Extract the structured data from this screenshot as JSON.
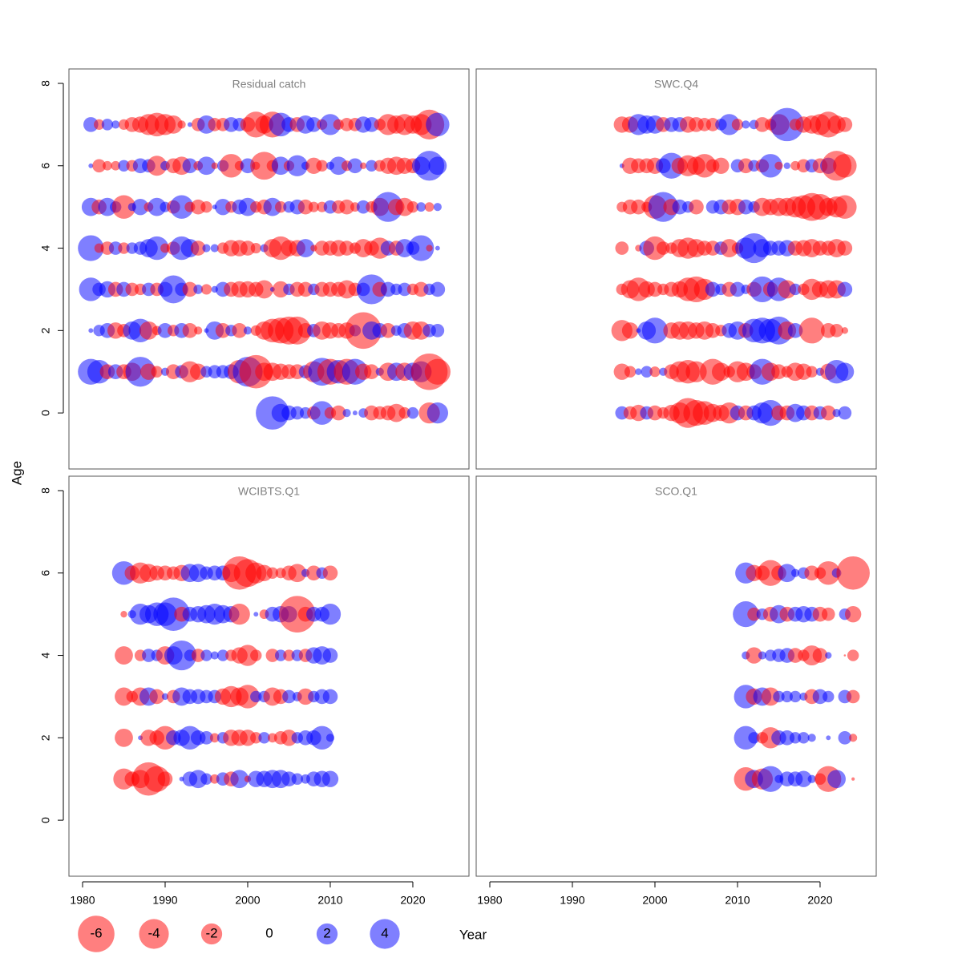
{
  "ylabel": "Age",
  "xlabel": "Year",
  "legend": {
    "values": [
      -6,
      -4,
      -2,
      0,
      2,
      4
    ],
    "positive_color": "#0000ff",
    "negative_color": "#ff0000",
    "opacity": 0.5
  },
  "chart_data": [
    {
      "type": "bubble",
      "title": "Residual catch",
      "xlim": [
        1978.35,
        2026.8
      ],
      "ylim": [
        -1.36,
        8.35
      ],
      "yticks": [
        0,
        2,
        4,
        6,
        8
      ],
      "x": [
        1981,
        1982,
        1983,
        1984,
        1985,
        1986,
        1987,
        1988,
        1989,
        1990,
        1991,
        1992,
        1993,
        1994,
        1995,
        1996,
        1997,
        1998,
        1999,
        2000,
        2001,
        2002,
        2003,
        2004,
        2005,
        2006,
        2007,
        2008,
        2009,
        2010,
        2011,
        2012,
        2013,
        2014,
        2015,
        2016,
        2017,
        2018,
        2019,
        2020,
        2021,
        2022,
        2023
      ],
      "ages": [
        0,
        1,
        2,
        3,
        4,
        5,
        6,
        7
      ],
      "values": [
        [
          null,
          null,
          null,
          null,
          null,
          null,
          null,
          null,
          null,
          null,
          null,
          null,
          null,
          null,
          null,
          null,
          null,
          null,
          null,
          null,
          null,
          null,
          5,
          1.5,
          1,
          0.8,
          0.6,
          -0.8,
          2.5,
          -0.6,
          -1,
          0.3,
          0.1,
          0.4,
          -1,
          -0.8,
          -1,
          -1.5,
          -0.6,
          0.6,
          null,
          -2,
          2
        ],
        [
          3,
          2.5,
          -1,
          1,
          -1,
          -1.5,
          4,
          -1.2,
          -0.6,
          0.3,
          -1,
          0.8,
          -2,
          -1.2,
          0.6,
          0.8,
          0.8,
          1,
          -2.5,
          4,
          -5,
          -1.5,
          -1.5,
          -1.2,
          -1,
          -1,
          0.8,
          -2,
          3.5,
          -3,
          2.5,
          -3,
          3,
          -1.2,
          -1,
          0.3,
          -1.5,
          1.5,
          -1.5,
          1.5,
          2,
          -6,
          -3
        ],
        [
          0.1,
          0.6,
          1,
          -1.2,
          -0.8,
          1.5,
          2.5,
          -1.5,
          -0.4,
          1,
          -0.6,
          1,
          -1,
          -0.3,
          0.1,
          1.5,
          -1,
          0.6,
          -1,
          0.3,
          -0.5,
          -1.5,
          -2.5,
          -3,
          -3.5,
          -3.5,
          -1,
          0.8,
          -1.5,
          -1.2,
          -1,
          -1.2,
          0.6,
          -6,
          1.5,
          1,
          -1,
          0.5,
          1,
          -1.5,
          -1.5,
          0.8,
          0.8
        ],
        [
          2.5,
          0.8,
          1.2,
          -1,
          1,
          -0.8,
          -0.6,
          0.8,
          -0.8,
          1,
          3.5,
          0.8,
          -1,
          0.4,
          -0.5,
          0.2,
          1,
          -1,
          -1.2,
          -1.2,
          -1,
          -1.5,
          0.1,
          -1.2,
          0.6,
          -1,
          -1,
          0.6,
          -1,
          -1,
          -1,
          -1.5,
          -0.8,
          0.8,
          4,
          -1,
          1,
          0.6,
          0.8,
          -0.6,
          -1,
          0.6,
          1
        ],
        [
          3,
          -0.4,
          -0.8,
          0.8,
          -0.6,
          0.6,
          0.8,
          1.5,
          2.5,
          -0.4,
          -0.8,
          2.5,
          1.5,
          -1,
          0.3,
          0.3,
          -0.6,
          -1.2,
          -1.2,
          -1,
          -0.5,
          0.3,
          -1.5,
          -2.5,
          -1.2,
          -1.2,
          1.5,
          -0.2,
          -1,
          -1,
          -1.2,
          -1,
          -0.6,
          -1.5,
          -1,
          -2,
          1,
          -1,
          1.5,
          0.8,
          3,
          -0.2,
          0.1
        ],
        [
          1.5,
          -1,
          1.5,
          0.6,
          -2.5,
          0.3,
          1.2,
          -0.4,
          1.5,
          0.5,
          -0.8,
          2.5,
          -0.5,
          -1,
          -0.6,
          0.1,
          1.2,
          -0.6,
          1,
          1.5,
          -0.6,
          -1,
          1.5,
          -0.6,
          0.6,
          1,
          -1,
          -0.5,
          -0.5,
          0.8,
          -0.8,
          -1,
          -0.4,
          0.8,
          -0.6,
          -1.5,
          4,
          -1.2,
          -1.5,
          -0.6,
          0.4,
          -0.4,
          0.3
        ],
        [
          0.1,
          -0.8,
          -0.4,
          -0.4,
          0.6,
          -0.6,
          1,
          0.8,
          -1.8,
          0.4,
          -1,
          -1.5,
          1,
          -0.4,
          1.5,
          -0.2,
          0.6,
          -2.5,
          -0.4,
          1,
          -0.3,
          -3.5,
          -0.6,
          1.5,
          -0.5,
          2,
          0.3,
          -1.2,
          -0.6,
          0.3,
          1.5,
          -0.5,
          1,
          -0.2,
          0.6,
          -0.6,
          -1.2,
          -1.5,
          -1.2,
          -1,
          1.5,
          4,
          1.5
        ],
        [
          1,
          -0.5,
          0.6,
          0.3,
          -0.5,
          -1,
          -1.2,
          -2,
          -2.5,
          -2,
          -1.5,
          -0.3,
          0.1,
          -0.8,
          1.5,
          -0.8,
          -0.8,
          1,
          0.8,
          -1,
          -3,
          -1.5,
          -3,
          2.5,
          1,
          -1,
          1.5,
          1,
          -0.5,
          2,
          -0.5,
          -0.8,
          -0.8,
          1.2,
          1,
          -0.6,
          -2,
          -1.5,
          -2,
          -1.5,
          -2,
          -4,
          2.5
        ]
      ]
    },
    {
      "type": "bubble",
      "title": "SWC.Q4",
      "xlim": [
        1978.35,
        2026.8
      ],
      "ylim": [
        -1.36,
        8.35
      ],
      "x": [
        1996,
        1997,
        1998,
        1999,
        2000,
        2001,
        2002,
        2003,
        2004,
        2005,
        2006,
        2007,
        2008,
        2009,
        2010,
        2011,
        2012,
        2013,
        2014,
        2015,
        2016,
        2017,
        2018,
        2019,
        2020,
        2021,
        2022,
        2023
      ],
      "ages": [
        0,
        1,
        2,
        3,
        4,
        5,
        6,
        7
      ],
      "values": [
        [
          0.8,
          -0.8,
          -1.2,
          0.8,
          -1,
          -0.6,
          -1.2,
          -2,
          -4,
          -3,
          -2.5,
          -1.5,
          -1.2,
          -2,
          1,
          -1,
          1,
          2,
          3,
          -1,
          -1,
          1.5,
          1,
          -1,
          0.8,
          -1,
          0.3,
          0.8
        ],
        [
          -1.2,
          -0.6,
          0.2,
          0.6,
          -0.5,
          0.3,
          -1,
          -2,
          -2.5,
          -2,
          null,
          -3,
          -1.5,
          -0.6,
          -2,
          -1.5,
          -1,
          3,
          -1.5,
          -1,
          -0.6,
          -1.5,
          -1.2,
          -0.6,
          0.3,
          -1.2,
          2.5,
          1.5
        ],
        [
          -2,
          -1.2,
          0.1,
          1.5,
          3,
          null,
          -1.2,
          -1.5,
          -1.5,
          -1.2,
          -1.5,
          -1,
          -0.6,
          1,
          1.5,
          -1,
          2.5,
          3,
          2.5,
          3.5,
          -1.5,
          1,
          null,
          -3,
          null,
          -1,
          -0.8,
          -0.2
        ],
        [
          -0.6,
          -1.5,
          -2.5,
          -1.2,
          -1,
          -0.6,
          -1,
          -1.2,
          -2.5,
          -3,
          -2,
          1,
          0.6,
          -1,
          1,
          0.4,
          -1,
          3,
          -1,
          2.5,
          -1.5,
          0.6,
          -0.6,
          -2,
          -1.2,
          -1.5,
          -1.5,
          1
        ],
        [
          -0.8,
          null,
          -0.2,
          1,
          -2.5,
          -0.8,
          -0.6,
          -1.5,
          -2,
          -1.5,
          -1,
          -1,
          0.8,
          -1.5,
          -0.6,
          2,
          4,
          1.5,
          1,
          1,
          1.2,
          -1,
          -1.2,
          -1.5,
          -1,
          -1,
          -1.5,
          -1
        ],
        [
          -0.5,
          -1,
          -1,
          -0.5,
          -2.5,
          4,
          -1.2,
          1,
          0.6,
          -1,
          null,
          0.8,
          1,
          -1,
          -1.2,
          1,
          0.6,
          -1.5,
          -1.2,
          -1.5,
          -1.5,
          -2,
          -2.5,
          -3.5,
          -3,
          -1.5,
          -2,
          -2.5
        ],
        [
          0.1,
          -1.2,
          -1,
          -1,
          -1.2,
          1,
          3,
          -1.2,
          -2,
          -1.5,
          -2.5,
          -0.8,
          -1.2,
          null,
          0.8,
          -1,
          0.6,
          -0.8,
          2.5,
          -0.3,
          0.2,
          -0.4,
          -0.8,
          0.8,
          -1,
          1.2,
          -4,
          -2.5
        ],
        [
          -1.2,
          -1.2,
          2,
          1.5,
          1.5,
          -1,
          1,
          1,
          -1.2,
          -1,
          -0.8,
          -0.8,
          0.6,
          2,
          -0.6,
          0.3,
          0.4,
          -1,
          -0.6,
          -2,
          5,
          -0.6,
          -1.2,
          -1.5,
          -2,
          -3,
          -1.5,
          -1
        ]
      ]
    },
    {
      "type": "bubble",
      "title": "WCIBTS.Q1",
      "xlim": [
        1978.35,
        2026.8
      ],
      "ylim": [
        -1.36,
        8.35
      ],
      "yticks": [
        0,
        2,
        4,
        6,
        8
      ],
      "xticks": [
        1980,
        1990,
        2000,
        2010,
        2020
      ],
      "x": [
        1985,
        1986,
        1987,
        1988,
        1989,
        1990,
        1991,
        1992,
        1993,
        1994,
        1995,
        1996,
        1997,
        1998,
        1999,
        2000,
        2001,
        2002,
        2003,
        2004,
        2005,
        2006,
        2007,
        2008,
        2009,
        2010
      ],
      "ages": [
        1,
        2,
        3,
        4,
        5,
        6
      ],
      "values": [
        [
          -2,
          -1,
          -1.5,
          -5,
          -3,
          -1,
          null,
          0.1,
          1,
          1.5,
          0.6,
          -0.4,
          0.8,
          -1,
          1.5,
          -0.2,
          1.2,
          1.2,
          1.5,
          1.5,
          1,
          0.6,
          0.4,
          1,
          1.2,
          1.2
        ],
        [
          -1.5,
          null,
          0.1,
          -1.2,
          -1,
          -2.5,
          1,
          1.2,
          2.5,
          1,
          0.8,
          -0.4,
          0.6,
          -1.2,
          -1.2,
          -1.2,
          -0.6,
          0.6,
          -0.4,
          -0.8,
          -1.2,
          0.6,
          1,
          1,
          2.5,
          0.3
        ],
        [
          -1.5,
          -0.6,
          -1.5,
          1.5,
          -1,
          0.2,
          -0.8,
          1.5,
          1,
          1,
          0.8,
          0.8,
          -1.2,
          -2,
          -1.5,
          -2.5,
          0.6,
          0.6,
          -1.5,
          -1,
          0.8,
          0.4,
          -1.2,
          0.6,
          1,
          1
        ],
        [
          -1.5,
          null,
          -0.6,
          0.8,
          0.6,
          -1.5,
          1.5,
          4,
          0.6,
          -0.8,
          0.6,
          0.3,
          0.6,
          -0.6,
          -1.2,
          -2,
          -0.6,
          null,
          -0.8,
          0.6,
          -0.6,
          0.6,
          -0.8,
          1.2,
          1.5,
          1
        ],
        [
          -0.2,
          0.3,
          2,
          1.5,
          2.5,
          2.5,
          5,
          -1,
          1,
          1.2,
          1.5,
          2,
          1.5,
          1.2,
          -2,
          null,
          0.1,
          -0.4,
          1,
          1.2,
          1.2,
          -6,
          -1,
          1,
          1,
          2
        ],
        [
          2.5,
          -1,
          -2,
          -1.5,
          -1,
          -1,
          -0.8,
          -1.2,
          1.5,
          1.5,
          0.8,
          1,
          1,
          -1.5,
          -5,
          -3.5,
          -2,
          -1.2,
          -0.6,
          -0.5,
          -1,
          -1.5,
          0.3,
          -1,
          0.6,
          -1
        ]
      ]
    },
    {
      "type": "bubble",
      "title": "SCO.Q1",
      "xlim": [
        1978.35,
        2026.8
      ],
      "ylim": [
        -1.36,
        8.35
      ],
      "xticks": [
        1980,
        1990,
        2000,
        2010,
        2020
      ],
      "x": [
        2011,
        2012,
        2013,
        2014,
        2015,
        2016,
        2017,
        2018,
        2019,
        2020,
        2021,
        2022,
        2023,
        2024
      ],
      "ages": [
        1,
        2,
        3,
        4,
        5,
        6
      ],
      "values": [
        [
          -2.5,
          1.5,
          -2,
          3,
          0.3,
          1,
          1,
          1.2,
          0.3,
          -0.6,
          -3,
          1.5,
          null,
          -0.05
        ],
        [
          2.5,
          0.6,
          -0.6,
          -2,
          1,
          1,
          0.6,
          0.6,
          0.3,
          null,
          0.1,
          null,
          0.8,
          -0.3
        ],
        [
          2.5,
          -1.2,
          1.5,
          -1.5,
          0.6,
          0.6,
          0.6,
          0.3,
          -1,
          1,
          0.6,
          null,
          0.8,
          -0.8
        ],
        [
          0.3,
          -1.2,
          0.3,
          0.6,
          0.8,
          1,
          -1,
          -0.6,
          -1.8,
          -1,
          0.2,
          null,
          -0.02,
          -0.6
        ],
        [
          3,
          -0.8,
          0.6,
          -1,
          1.5,
          -1,
          1,
          1.2,
          1,
          -1,
          -0.8,
          null,
          0.6,
          -1.2
        ],
        [
          2,
          -1.2,
          -1,
          -3,
          -1,
          1.5,
          0.3,
          0.6,
          -1,
          -0.6,
          -2.5,
          0.4,
          null,
          -5
        ]
      ]
    }
  ]
}
